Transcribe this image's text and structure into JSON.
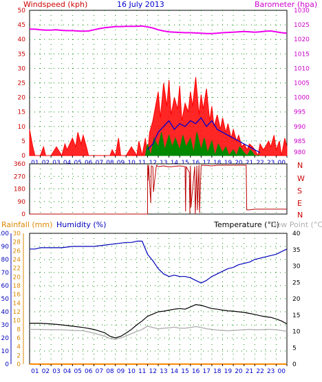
{
  "header": {
    "windspeed_label": "Windspeed (kph)",
    "date": "16 July 2013",
    "barometer_label": "Barometer (hpa)"
  },
  "bottom_header": {
    "rainfall_label": "Rainfall (mm)",
    "humidity_label": "Humidity (%)",
    "temperature_label": "Temperature (°C)",
    "dewpoint_label": "Dew Point (°C)"
  },
  "colors": {
    "wind_max": "#ff0000",
    "wind_avg": "#0000cc",
    "wind_low": "#008800",
    "barometer": "#ee00ee",
    "direction": "#bb0000",
    "humidity": "#0000bb",
    "rainfall": "#ff8800",
    "temperature": "#000000",
    "dewpoint": "#b0b0b0",
    "grid_dot": "#008800",
    "axis_text": "#0000cc",
    "label_red": "#cc0000",
    "label_magenta": "#cc00cc",
    "rain_axis": "#dd8800"
  },
  "chart_data": [
    {
      "type": "line",
      "name": "wind-barometer",
      "title": "16 July 2013",
      "xlabel": "",
      "x_ticks": [
        "01",
        "02",
        "03",
        "04",
        "05",
        "06",
        "07",
        "08",
        "09",
        "10",
        "11",
        "12",
        "13",
        "14",
        "15",
        "16",
        "17",
        "18",
        "19",
        "20",
        "21",
        "22",
        "23",
        "00"
      ],
      "xlim": [
        0,
        24
      ],
      "ylabel_left": "Windspeed (kph)",
      "ylim_left": [
        0,
        50
      ],
      "y_ticks_left": [
        0,
        5,
        10,
        15,
        20,
        25,
        30,
        35,
        40,
        45,
        50
      ],
      "ylabel_right": "Barometer (hpa)",
      "ylim_right": [
        980,
        1030
      ],
      "y_ticks_right": [
        980,
        985,
        990,
        995,
        1000,
        1005,
        1010,
        1015,
        1020,
        1025,
        1030
      ],
      "series": [
        {
          "name": "Barometer (hpa)",
          "axis": "right",
          "x": [
            0,
            0.5,
            1,
            1.5,
            2,
            2.5,
            3,
            3.5,
            4,
            4.5,
            5,
            5.5,
            6,
            6.5,
            7,
            7.5,
            8,
            8.5,
            9,
            9.5,
            10,
            10.5,
            11,
            11.5,
            12,
            12.5,
            13,
            13.5,
            14,
            14.5,
            15,
            15.5,
            16,
            16.5,
            17,
            17.5,
            18,
            18.5,
            19,
            19.5,
            20,
            20.5,
            21,
            21.5,
            22,
            22.5,
            23,
            23.5,
            24
          ],
          "y": [
            1023.5,
            1023.5,
            1023.3,
            1023.2,
            1023.2,
            1023.3,
            1023.1,
            1023,
            1023,
            1022.9,
            1022.8,
            1022.9,
            1023.3,
            1023.7,
            1024,
            1024.2,
            1024.4,
            1024.4,
            1024.5,
            1024.5,
            1024.5,
            1024.6,
            1024.3,
            1023.9,
            1023.3,
            1022.9,
            1022.6,
            1022.5,
            1022.4,
            1022.3,
            1022.3,
            1022.2,
            1022.1,
            1022,
            1022,
            1022.1,
            1022.3,
            1022.4,
            1022.5,
            1022.6,
            1022.7,
            1022.6,
            1022.5,
            1022.6,
            1022.8,
            1022.9,
            1022.6,
            1022.3,
            1022.1
          ]
        },
        {
          "name": "Wind gust",
          "axis": "left",
          "x": [
            0,
            0.15,
            0.3,
            0.5,
            1,
            1.3,
            1.5,
            2,
            2.5,
            3,
            3.3,
            3.5,
            4,
            4.3,
            4.5,
            4.8,
            5,
            5.3,
            5.5,
            6,
            6.5,
            7,
            7.5,
            7.7,
            8,
            8.3,
            8.5,
            9,
            9.5,
            10,
            10.2,
            10.5,
            10.8,
            11,
            11.2,
            11.5,
            11.7,
            12,
            12.2,
            12.5,
            12.8,
            13,
            13.2,
            13.5,
            13.8,
            14,
            14.2,
            14.5,
            14.8,
            15,
            15.2,
            15.5,
            15.8,
            16,
            16.2,
            16.5,
            16.8,
            17,
            17.2,
            17.5,
            17.8,
            18,
            18.3,
            18.5,
            18.8,
            19,
            19.3,
            19.5,
            19.8,
            20,
            20.3,
            20.5,
            20.8,
            21,
            21.3,
            21.5,
            21.8,
            22,
            22.3,
            22.5,
            22.8,
            23,
            23.3,
            23.5,
            23.8,
            24
          ],
          "y": [
            9,
            6,
            3,
            0,
            0,
            3,
            0,
            0,
            3,
            0,
            4,
            2,
            6,
            3,
            8,
            4,
            7,
            3,
            0,
            0,
            0,
            0,
            0,
            2,
            0,
            6,
            0,
            0,
            3,
            0,
            5,
            0,
            6,
            0,
            8,
            12,
            16,
            22,
            13,
            25,
            17,
            26,
            14,
            20,
            16,
            24,
            12,
            18,
            15,
            22,
            17,
            27,
            14,
            21,
            16,
            23,
            12,
            17,
            10,
            14,
            9,
            13,
            8,
            11,
            6,
            9,
            5,
            7,
            3,
            4,
            2,
            4,
            3,
            2,
            0,
            4,
            2,
            3,
            5,
            3,
            7,
            2,
            5,
            0,
            6,
            3
          ]
        },
        {
          "name": "Wind average",
          "axis": "left",
          "x": [
            11,
            11.5,
            12,
            12.5,
            13,
            13.5,
            14,
            14.5,
            15,
            15.5,
            16,
            16.5,
            17,
            17.5,
            18,
            18.5,
            19,
            19.5,
            20,
            20.5,
            21,
            21.5
          ],
          "y": [
            2,
            4,
            8,
            10,
            12,
            9,
            11,
            10,
            12,
            11,
            13,
            10,
            12,
            9,
            8,
            7,
            6,
            5,
            4,
            3,
            2,
            1
          ]
        },
        {
          "name": "Wind low",
          "axis": "left",
          "x": [
            10.8,
            11,
            11.3,
            11.6,
            12,
            12.3,
            12.6,
            13,
            13.3,
            13.6,
            14,
            14.3,
            14.6,
            15,
            15.3,
            15.6,
            16,
            16.3,
            16.6,
            17,
            17.3,
            17.6,
            18,
            18.3,
            18.6,
            19,
            19.3,
            19.6,
            20,
            20.3,
            20.6,
            21,
            21.5
          ],
          "y": [
            0,
            4,
            0,
            6,
            3,
            8,
            2,
            7,
            3,
            6,
            2,
            7,
            3,
            6,
            1,
            8,
            2,
            6,
            1,
            5,
            0,
            4,
            1,
            3,
            0,
            2,
            0,
            3,
            1,
            0,
            2,
            0,
            0
          ]
        }
      ]
    },
    {
      "type": "line",
      "name": "wind-direction",
      "title": "",
      "xlim": [
        0,
        24
      ],
      "ylim": [
        0,
        360
      ],
      "y_ticks": [
        0,
        90,
        180,
        270,
        360
      ],
      "right_labels": [
        "N",
        "W",
        "S",
        "E",
        "N"
      ],
      "series": [
        {
          "name": "Wind direction",
          "x": [
            0,
            11,
            11.02,
            11.05,
            11.1,
            11.3,
            11.35,
            11.5,
            11.55,
            11.8,
            11.85,
            12,
            12.5,
            13,
            13.5,
            14,
            14.5,
            14.55,
            14.6,
            14.9,
            14.95,
            15,
            15.05,
            15.4,
            15.45,
            15.6,
            15.65,
            15.8,
            15.85,
            16,
            16.05,
            16.5,
            17,
            17.5,
            18,
            18.5,
            19,
            19.5,
            20,
            20.2,
            20.25,
            20.5,
            21,
            24
          ],
          "y": [
            0,
            0,
            350,
            240,
            350,
            80,
            345,
            340,
            160,
            335,
            350,
            340,
            345,
            338,
            342,
            345,
            340,
            20,
            340,
            300,
            5,
            345,
            50,
            340,
            0,
            345,
            30,
            350,
            10,
            345,
            350,
            348,
            345,
            350,
            350,
            350,
            350,
            350,
            350,
            350,
            30,
            30,
            35,
            35
          ]
        }
      ]
    },
    {
      "type": "line",
      "name": "temp-humidity-rain",
      "title": "",
      "xlim": [
        0,
        24
      ],
      "x_ticks": [
        "01",
        "02",
        "03",
        "04",
        "05",
        "06",
        "07",
        "08",
        "09",
        "10",
        "11",
        "12",
        "13",
        "14",
        "15",
        "16",
        "17",
        "18",
        "19",
        "20",
        "21",
        "22",
        "23",
        "00"
      ],
      "ylim_humidity": [
        0,
        100
      ],
      "y_ticks_humidity": [
        0,
        10,
        20,
        30,
        40,
        50,
        60,
        70,
        80,
        90,
        100
      ],
      "ylim_rain": [
        0,
        30
      ],
      "y_ticks_rain": [
        0,
        2,
        4,
        6,
        8,
        10,
        12,
        14,
        16,
        18,
        20,
        22,
        24,
        26,
        28,
        30
      ],
      "ylim_temperature": [
        0,
        40
      ],
      "y_ticks_temperature": [
        0,
        5,
        10,
        15,
        20,
        25,
        30,
        35,
        40
      ],
      "series": [
        {
          "name": "Humidity (%)",
          "axis": "humidity",
          "x": [
            0,
            0.5,
            1,
            2,
            3,
            4,
            5,
            6,
            7,
            8,
            9,
            9.5,
            10,
            10.5,
            11,
            11.5,
            12,
            12.5,
            13,
            13.5,
            14,
            14.5,
            15,
            15.5,
            16,
            16.5,
            17,
            17.5,
            18,
            18.5,
            19,
            19.5,
            20,
            20.5,
            21,
            21.5,
            22,
            22.5,
            23,
            23.5,
            24
          ],
          "y": [
            88,
            88,
            89,
            89,
            89,
            90,
            90,
            90,
            91,
            92,
            93,
            93,
            94,
            94,
            84,
            79,
            73,
            69,
            67,
            68,
            67,
            67,
            66,
            64,
            62,
            64,
            67,
            69,
            71,
            73,
            74,
            76,
            77,
            78,
            80,
            81,
            82,
            83,
            84,
            86,
            88
          ]
        },
        {
          "name": "Rainfall (mm)",
          "axis": "rain",
          "x": [
            0,
            24
          ],
          "y": [
            0,
            0
          ]
        },
        {
          "name": "Temperature (°C)",
          "axis": "temperature",
          "x": [
            0,
            1,
            2,
            3,
            4,
            5,
            6,
            7,
            7.5,
            8,
            8.5,
            9,
            9.5,
            10,
            10.5,
            11,
            11.5,
            12,
            12.5,
            13,
            13.5,
            14,
            14.5,
            15,
            15.5,
            16,
            16.5,
            17,
            17.5,
            18,
            18.5,
            19,
            19.5,
            20,
            20.5,
            21,
            21.5,
            22,
            22.5,
            23,
            23.5,
            24
          ],
          "y": [
            12.5,
            12.5,
            12.3,
            12,
            11.6,
            11.2,
            10.6,
            9.6,
            8.5,
            8,
            8.5,
            9.5,
            10.6,
            12,
            13.2,
            14.6,
            15.3,
            16,
            16.2,
            16.5,
            16.8,
            17,
            16.8,
            17.5,
            18.2,
            18,
            17.5,
            17,
            16.8,
            16.5,
            16.3,
            16.2,
            16,
            15.8,
            15.5,
            15.2,
            14.8,
            14.5,
            14.3,
            13.8,
            13.2,
            12.3
          ]
        },
        {
          "name": "Dew Point (°C)",
          "axis": "temperature",
          "x": [
            0,
            1,
            2,
            3,
            4,
            5,
            6,
            7,
            7.5,
            8,
            8.5,
            9,
            9.5,
            10,
            10.5,
            11,
            11.5,
            12,
            12.5,
            13,
            13.5,
            14,
            14.5,
            15,
            15.5,
            16,
            16.5,
            17,
            17.5,
            18,
            18.5,
            19,
            19.5,
            20,
            20.5,
            21,
            21.5,
            22,
            22.5,
            23,
            23.5,
            24
          ],
          "y": [
            10.6,
            10.6,
            10.5,
            10.5,
            10.3,
            10.2,
            9.5,
            8.5,
            7.8,
            7.6,
            8,
            8.6,
            9.3,
            10,
            10.6,
            11.6,
            11.2,
            10.8,
            11,
            11.1,
            11.3,
            11,
            11,
            11.2,
            11.5,
            11.2,
            10.8,
            10.6,
            10.4,
            10.3,
            10.2,
            10.3,
            10.4,
            10.5,
            10.6,
            10.5,
            10.5,
            10.6,
            10.6,
            10.5,
            10.3,
            10
          ]
        }
      ]
    }
  ]
}
